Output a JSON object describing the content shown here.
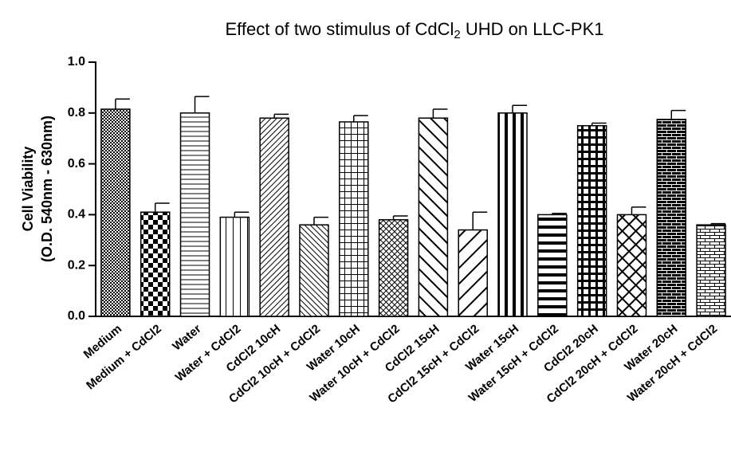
{
  "chart_data": {
    "type": "bar",
    "title": [
      "Effect of two stimulus of CdCl",
      "2",
      " UHD on LLC-PK1"
    ],
    "ylabel": [
      "Cell Viability",
      "(O.D. 540nm - 630nm)"
    ],
    "categories": [
      "Medium",
      "Medium + CdCl2",
      "Water",
      "Water + CdCl2",
      "CdCl2 10cH",
      "CdCl2 10cH + CdCl2",
      "Water 10cH",
      "Water 10cH + CdCl2",
      "CdCl2 15cH",
      "CdCl2 15cH + CdCl2",
      "Water 15cH",
      "Water 15cH + CdCl2",
      "CdCl2 20cH",
      "CdCl2 20cH + CdCl2",
      "Water 20cH",
      "Water 20cH + CdCl2"
    ],
    "values": [
      0.815,
      0.41,
      0.8,
      0.39,
      0.78,
      0.36,
      0.765,
      0.38,
      0.78,
      0.34,
      0.8,
      0.4,
      0.75,
      0.4,
      0.775,
      0.36
    ],
    "errors": [
      0.04,
      0.035,
      0.065,
      0.02,
      0.015,
      0.03,
      0.025,
      0.015,
      0.035,
      0.07,
      0.03,
      0.005,
      0.01,
      0.03,
      0.035,
      0.005
    ],
    "color": "#000000",
    "ylim": [
      0,
      1.0
    ],
    "yticks": [
      {
        "value": 0,
        "label": "0.0"
      },
      0.2,
      0.4,
      0.6,
      0.8,
      {
        "value": 1.0,
        "label": "1.0"
      }
    ]
  }
}
